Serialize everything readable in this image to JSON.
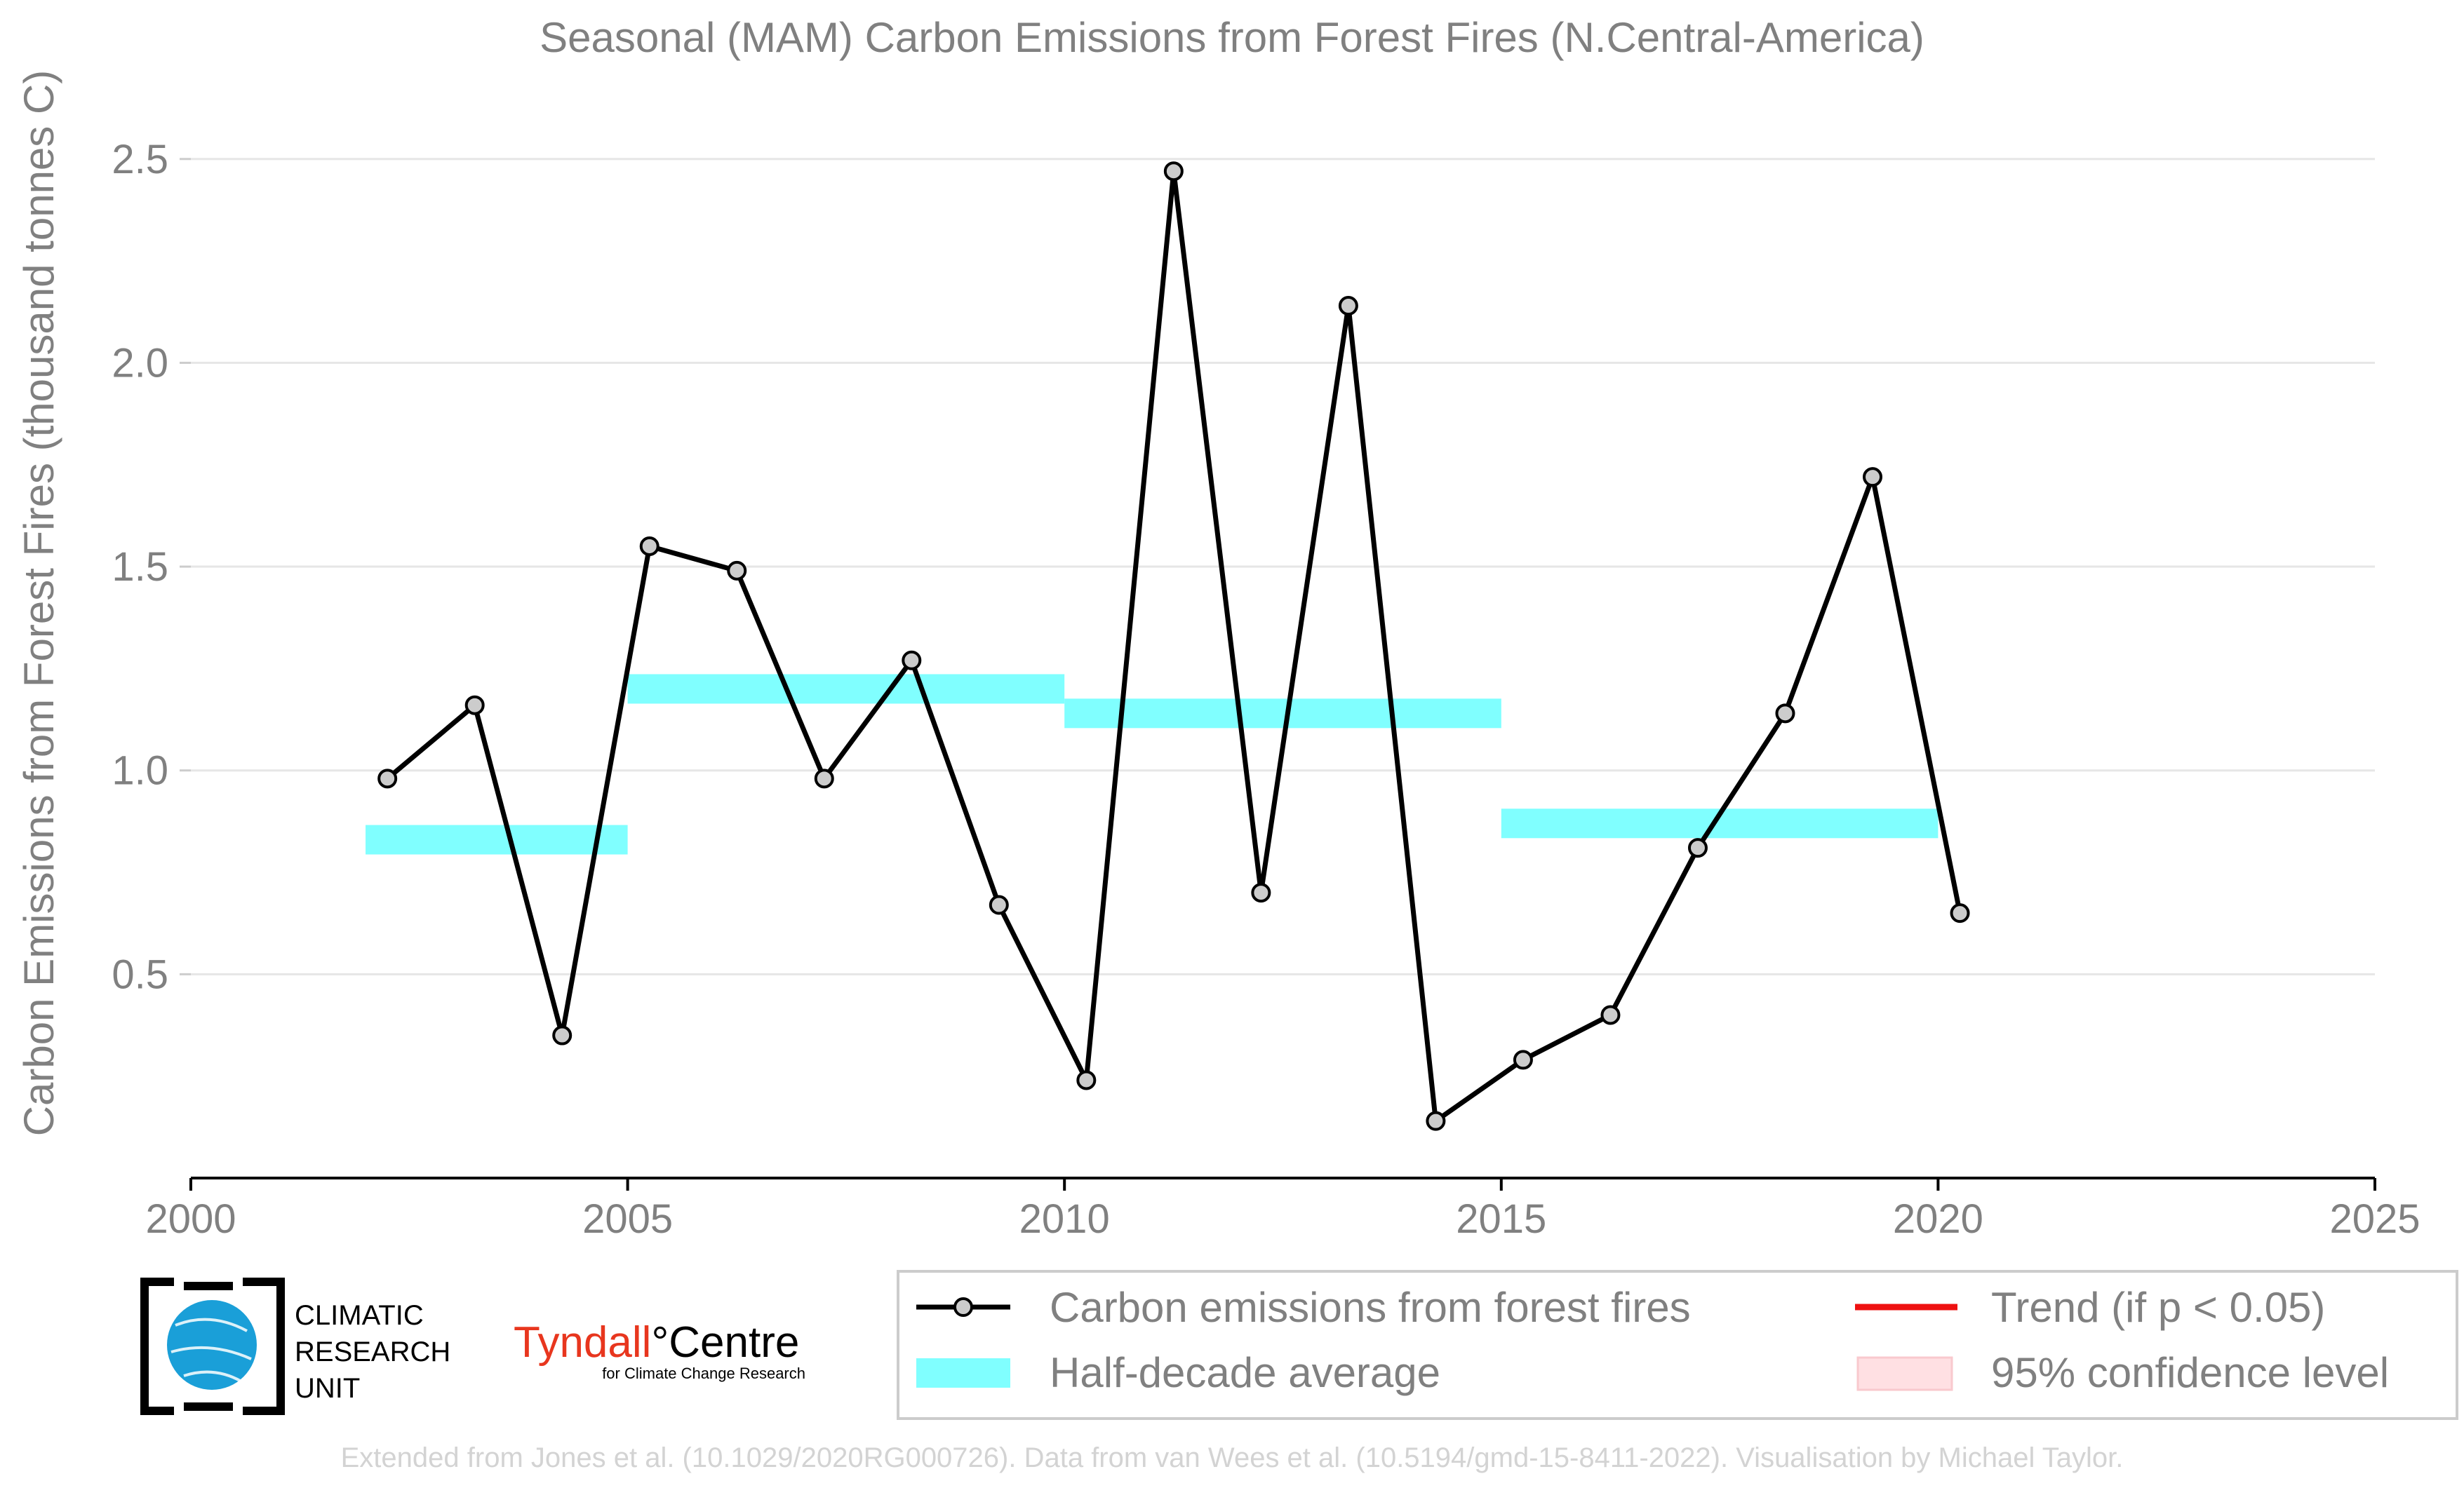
{
  "chart_data": {
    "type": "line",
    "title": "Seasonal (MAM) Carbon Emissions from Forest Fires (N.Central-America)",
    "ylabel": "Carbon Emissions from Forest Fires (thousand tonnes C)",
    "xlabel": "",
    "xlim": [
      2000,
      2025
    ],
    "ylim": [
      0,
      2.5
    ],
    "xticks": [
      "2000",
      "2005",
      "2010",
      "2015",
      "2020",
      "2025"
    ],
    "yticks": [
      "0.5",
      "1.0",
      "1.5",
      "2.0",
      "2.5"
    ],
    "grid": "horizontal",
    "legend_position": "bottom-right",
    "series": [
      {
        "name": "Carbon emissions from forest fires",
        "color": "#000000",
        "marker_fill": "#cccccc",
        "x": [
          2002.25,
          2003.25,
          2004.25,
          2005.25,
          2006.25,
          2007.25,
          2008.25,
          2009.25,
          2010.25,
          2011.25,
          2012.25,
          2013.25,
          2014.25,
          2015.25,
          2016.25,
          2017.25,
          2018.25,
          2019.25,
          2020.25
        ],
        "y": [
          0.98,
          1.16,
          0.35,
          1.55,
          1.49,
          0.98,
          1.27,
          0.67,
          0.24,
          2.47,
          0.7,
          2.14,
          0.14,
          0.29,
          0.4,
          0.81,
          1.14,
          1.72,
          0.65
        ]
      }
    ],
    "half_decade_average": {
      "name": "Half-decade average",
      "color": "#80ffff",
      "segments": [
        {
          "x0": 2002,
          "x1": 2005,
          "y": 0.83
        },
        {
          "x0": 2005,
          "x1": 2010,
          "y": 1.2
        },
        {
          "x0": 2010,
          "x1": 2015,
          "y": 1.14
        },
        {
          "x0": 2015,
          "x1": 2020,
          "y": 0.87
        }
      ]
    },
    "legend": [
      {
        "label": "Carbon emissions from forest fires",
        "kind": "line-marker",
        "color": "#000000"
      },
      {
        "label": "Trend (if p < 0.05)",
        "kind": "line",
        "color": "#ee1111"
      },
      {
        "label": "Half-decade average",
        "kind": "band",
        "color": "#80ffff"
      },
      {
        "label": "95% confidence level",
        "kind": "patch",
        "color": "#ffe0e3"
      }
    ]
  },
  "logos": {
    "cru": [
      "CLIMATIC",
      "RESEARCH",
      "UNIT"
    ],
    "tyndall_name": "Tyndall",
    "tyndall_degree": "°",
    "tyndall_centre": "Centre",
    "tyndall_sub": "for Climate Change Research"
  },
  "footer": "Extended from Jones et al. (10.1029/2020RG000726). Data from van Wees et al. (10.5194/gmd-15-8411-2022). Visualisation by Michael Taylor."
}
